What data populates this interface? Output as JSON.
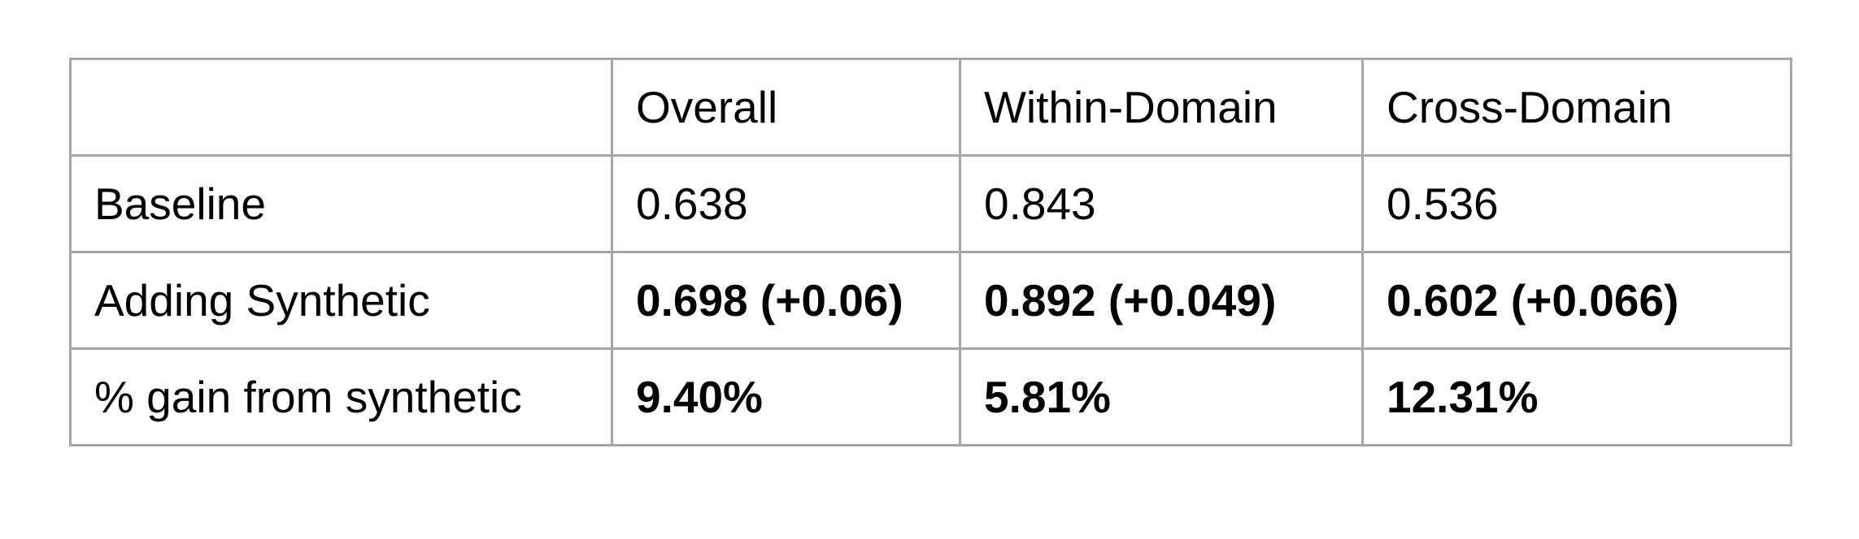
{
  "table": {
    "columns": [
      "",
      "Overall",
      "Within-Domain",
      "Cross-Domain"
    ],
    "rows": [
      {
        "label": "Baseline",
        "values": [
          "0.638",
          "0.843",
          "0.536"
        ],
        "bold": false
      },
      {
        "label": "Adding Synthetic",
        "values": [
          "0.698 (+0.06)",
          "0.892 (+0.049)",
          "0.602 (+0.066)"
        ],
        "bold": true
      },
      {
        "label": "% gain from synthetic",
        "values": [
          "9.40%",
          "5.81%",
          "12.31%"
        ],
        "bold": true
      }
    ]
  }
}
